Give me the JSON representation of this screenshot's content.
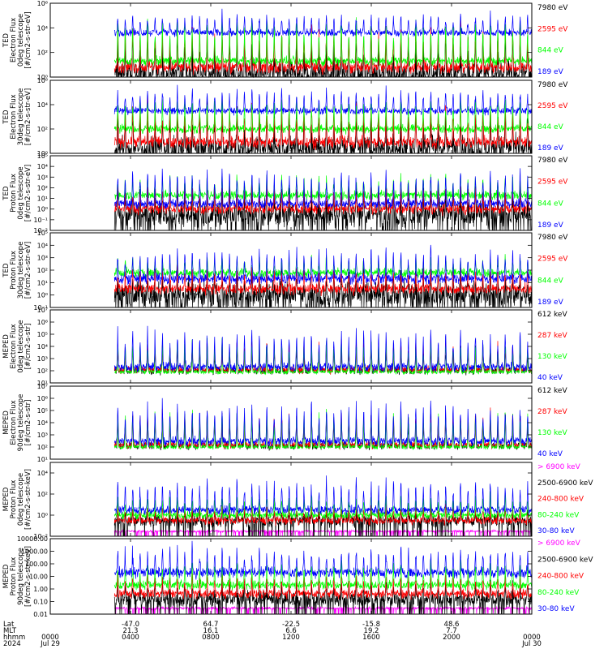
{
  "chart_data": [
    {
      "type": "line",
      "ylabel": [
        "TED",
        "Electron Flux",
        "0deg telescope",
        "[#/cm2-s-str-eV]"
      ],
      "yscale": "log",
      "ylim": [
        1,
        1000000
      ],
      "yticks": [
        {
          "v": 1,
          "t": "10⁰"
        },
        {
          "v": 100,
          "t": "10²"
        },
        {
          "v": 10000,
          "t": "10⁴"
        },
        {
          "v": 1000000,
          "t": "10⁶"
        }
      ],
      "series": [
        {
          "name": "7980 eV",
          "color": "#000000",
          "base": 2,
          "peak": 10000,
          "noise": 0.8,
          "pulse": 0.75,
          "drop": true
        },
        {
          "name": "2595 eV",
          "color": "#ff0000",
          "base": 6,
          "peak": 40000,
          "noise": 0.4,
          "pulse": 0.8,
          "drop": false
        },
        {
          "name": "844 eV",
          "color": "#00ff00",
          "base": 20,
          "peak": 80000,
          "noise": 0.3,
          "pulse": 0.8,
          "drop": false
        },
        {
          "name": "189 eV",
          "color": "#0000ff",
          "base": 4000,
          "peak": 200000,
          "noise": 0.25,
          "pulse": 0.45,
          "drop": false
        }
      ]
    },
    {
      "type": "line",
      "ylabel": [
        "TED",
        "Electron Flux",
        "30deg telescope",
        "[#/cm2-s-str-eV]"
      ],
      "yscale": "log",
      "ylim": [
        1,
        1000000
      ],
      "yticks": [
        {
          "v": 1,
          "t": "10⁰"
        },
        {
          "v": 100,
          "t": "10²"
        },
        {
          "v": 10000,
          "t": "10⁴"
        },
        {
          "v": 1000000,
          "t": "10⁶"
        }
      ],
      "series": [
        {
          "name": "7980 eV",
          "color": "#000000",
          "base": 3,
          "peak": 5000,
          "noise": 0.8,
          "pulse": 0.7,
          "drop": true
        },
        {
          "name": "2595 eV",
          "color": "#ff0000",
          "base": 8,
          "peak": 30000,
          "noise": 0.4,
          "pulse": 0.8,
          "drop": false
        },
        {
          "name": "844 eV",
          "color": "#00ff00",
          "base": 100,
          "peak": 60000,
          "noise": 0.3,
          "pulse": 0.75,
          "drop": false
        },
        {
          "name": "189 eV",
          "color": "#0000ff",
          "base": 3000,
          "peak": 300000,
          "noise": 0.25,
          "pulse": 0.5,
          "drop": false
        }
      ]
    },
    {
      "type": "line",
      "ylabel": [
        "TED",
        "Proton Flux",
        "0deg telescope",
        "[#/cm2-s-str-eV]"
      ],
      "yscale": "log",
      "ylim": [
        0.01,
        100000
      ],
      "yticks": [
        {
          "v": 0.01,
          "t": "10⁻²"
        },
        {
          "v": 0.1,
          "t": "10⁻¹"
        },
        {
          "v": 1,
          "t": "10⁰"
        },
        {
          "v": 10,
          "t": "10¹"
        },
        {
          "v": 100,
          "t": "10²"
        },
        {
          "v": 1000,
          "t": "10³"
        },
        {
          "v": 10000,
          "t": "10⁴"
        },
        {
          "v": 100000,
          "t": "10⁵"
        }
      ],
      "series": [
        {
          "name": "7980 eV",
          "color": "#000000",
          "base": 0.3,
          "peak": 100,
          "noise": 1.0,
          "pulse": 0.7,
          "drop": true
        },
        {
          "name": "2595 eV",
          "color": "#ff0000",
          "base": 1,
          "peak": 300,
          "noise": 0.4,
          "pulse": 0.7,
          "drop": false
        },
        {
          "name": "844 eV",
          "color": "#00ff00",
          "base": 20,
          "peak": 2000,
          "noise": 0.35,
          "pulse": 0.55,
          "drop": false
        },
        {
          "name": "189 eV",
          "color": "#0000ff",
          "base": 3,
          "peak": 10000,
          "noise": 0.35,
          "pulse": 0.7,
          "drop": false
        }
      ]
    },
    {
      "type": "line",
      "ylabel": [
        "TED",
        "Proton Flux",
        "30deg telescope",
        "[#/cm2-s-str-eV]"
      ],
      "yscale": "log",
      "ylim": [
        0.1,
        100000
      ],
      "yticks": [
        {
          "v": 0.1,
          "t": "10⁻¹"
        },
        {
          "v": 1,
          "t": "10⁰"
        },
        {
          "v": 10,
          "t": "10¹"
        },
        {
          "v": 100,
          "t": "10²"
        },
        {
          "v": 1000,
          "t": "10³"
        },
        {
          "v": 10000,
          "t": "10⁴"
        },
        {
          "v": 100000,
          "t": "10⁵"
        }
      ],
      "series": [
        {
          "name": "7980 eV",
          "color": "#000000",
          "base": 1,
          "peak": 50,
          "noise": 0.9,
          "pulse": 0.7,
          "drop": true
        },
        {
          "name": "2595 eV",
          "color": "#ff0000",
          "base": 3,
          "peak": 200,
          "noise": 0.35,
          "pulse": 0.7,
          "drop": false
        },
        {
          "name": "844 eV",
          "color": "#00ff00",
          "base": 60,
          "peak": 1500,
          "noise": 0.3,
          "pulse": 0.5,
          "drop": false
        },
        {
          "name": "189 eV",
          "color": "#0000ff",
          "base": 20,
          "peak": 10000,
          "noise": 0.35,
          "pulse": 0.7,
          "drop": false
        }
      ]
    },
    {
      "type": "line",
      "ylabel": [
        "MEPED",
        "Electron Flux",
        "0deg telescope",
        "[#/cm2-s-str]"
      ],
      "yscale": "log",
      "ylim": [
        10,
        10000000
      ],
      "yticks": [
        {
          "v": 10,
          "t": "10¹"
        },
        {
          "v": 100,
          "t": "10²"
        },
        {
          "v": 1000,
          "t": "10³"
        },
        {
          "v": 10000,
          "t": "10⁴"
        },
        {
          "v": 100000,
          "t": "10⁵"
        },
        {
          "v": 1000000,
          "t": "10⁶"
        },
        {
          "v": 10000000,
          "t": "10⁷"
        }
      ],
      "series": [
        {
          "name": "612 keV",
          "color": "#000000",
          "base": 100,
          "peak": 20000,
          "noise": 0.25,
          "pulse": 0.6,
          "drop": false
        },
        {
          "name": "287 keV",
          "color": "#ff0000",
          "base": 120,
          "peak": 40000,
          "noise": 0.25,
          "pulse": 0.6,
          "drop": false
        },
        {
          "name": "130 keV",
          "color": "#00ff00",
          "base": 80,
          "peak": 60000,
          "noise": 0.15,
          "pulse": 0.6,
          "drop": false
        },
        {
          "name": "40 keV",
          "color": "#0000ff",
          "base": 200,
          "peak": 500000,
          "noise": 0.3,
          "pulse": 0.6,
          "drop": false
        }
      ]
    },
    {
      "type": "line",
      "ylabel": [
        "MEPED",
        "Electron Flux",
        "90deg telescope",
        "[#/cm2-s-str]"
      ],
      "yscale": "log",
      "ylim": [
        10,
        10000000
      ],
      "yticks": [
        {
          "v": 10,
          "t": "10¹"
        },
        {
          "v": 100,
          "t": "10²"
        },
        {
          "v": 1000,
          "t": "10³"
        },
        {
          "v": 10000,
          "t": "10⁴"
        },
        {
          "v": 100000,
          "t": "10⁵"
        },
        {
          "v": 1000000,
          "t": "10⁶"
        },
        {
          "v": 10000000,
          "t": "10⁷"
        }
      ],
      "series": [
        {
          "name": "612 keV",
          "color": "#000000",
          "base": 120,
          "peak": 100000,
          "noise": 0.25,
          "pulse": 0.75,
          "drop": false
        },
        {
          "name": "287 keV",
          "color": "#ff0000",
          "base": 150,
          "peak": 200000,
          "noise": 0.25,
          "pulse": 0.75,
          "drop": false
        },
        {
          "name": "130 keV",
          "color": "#00ff00",
          "base": 100,
          "peak": 300000,
          "noise": 0.15,
          "pulse": 0.75,
          "drop": false
        },
        {
          "name": "40 keV",
          "color": "#0000ff",
          "base": 300,
          "peak": 1000000,
          "noise": 0.3,
          "pulse": 0.75,
          "drop": false
        }
      ]
    },
    {
      "type": "line",
      "ylabel": [
        "MEPED",
        "Proton Flux",
        "0deg telescope",
        "[#/cm2-s-str-keV]"
      ],
      "yscale": "log",
      "ylim": [
        0.01,
        100000
      ],
      "yticks": [
        {
          "v": 0.01,
          "t": "10⁻²"
        },
        {
          "v": 1,
          "t": "10⁰"
        },
        {
          "v": 100,
          "t": "10²"
        },
        {
          "v": 10000,
          "t": "10⁴"
        }
      ],
      "series": [
        {
          "name": "> 6900 keV",
          "color": "#ff00ff",
          "base": 0.03,
          "peak": 0.06,
          "noise": 0.3,
          "pulse": 0.0,
          "drop": true
        },
        {
          "name": "2500-6900 keV",
          "color": "#000000",
          "base": 0.3,
          "peak": 3,
          "noise": 0.5,
          "pulse": 0.5,
          "drop": true
        },
        {
          "name": "240-800 keV",
          "color": "#ff0000",
          "base": 0.3,
          "peak": 10,
          "noise": 0.3,
          "pulse": 0.5,
          "drop": false
        },
        {
          "name": "80-240 keV",
          "color": "#00ff00",
          "base": 1,
          "peak": 100,
          "noise": 0.3,
          "pulse": 0.5,
          "drop": false
        },
        {
          "name": "30-80 keV",
          "color": "#0000ff",
          "base": 3,
          "peak": 5000,
          "noise": 0.35,
          "pulse": 0.55,
          "drop": false
        }
      ]
    },
    {
      "type": "line",
      "ylabel": [
        "MEPED",
        "Proton Flux",
        "90deg telescope",
        "[#/cm2-s-str-keV]"
      ],
      "yscale": "log",
      "ylim": [
        0.01,
        10000
      ],
      "yticks": [
        {
          "v": 0.01,
          "t": "0.01"
        },
        {
          "v": 0.1,
          "t": "0.10"
        },
        {
          "v": 1,
          "t": "1.00"
        },
        {
          "v": 10,
          "t": "10.00"
        },
        {
          "v": 100,
          "t": "100.00"
        },
        {
          "v": 1000,
          "t": "1000.00"
        },
        {
          "v": 10000,
          "t": "10000.00"
        }
      ],
      "series": [
        {
          "name": "> 6900 keV",
          "color": "#ff00ff",
          "base": 0.03,
          "peak": 0.06,
          "noise": 0.3,
          "pulse": 0.0,
          "drop": true
        },
        {
          "name": "2500-6900 keV",
          "color": "#000000",
          "base": 0.15,
          "peak": 5,
          "noise": 0.5,
          "pulse": 0.5,
          "drop": true
        },
        {
          "name": "240-800 keV",
          "color": "#ff0000",
          "base": 0.4,
          "peak": 20,
          "noise": 0.3,
          "pulse": 0.5,
          "drop": false
        },
        {
          "name": "80-240 keV",
          "color": "#00ff00",
          "base": 2,
          "peak": 200,
          "noise": 0.3,
          "pulse": 0.5,
          "drop": false
        },
        {
          "name": "30-80 keV",
          "color": "#0000ff",
          "base": 20,
          "peak": 3000,
          "noise": 0.35,
          "pulse": 0.55,
          "drop": false
        }
      ]
    }
  ],
  "x_axis": {
    "data_start_hour": 3.2,
    "orbits": 28,
    "tick_hours": [
      0,
      4,
      8,
      12,
      16,
      20,
      24
    ],
    "row_labels": [
      "Lat",
      "MLT",
      "hhmm",
      "2024"
    ],
    "lat": [
      "",
      "-47.0",
      "64.7",
      "-22.5",
      "-15.8",
      "48.6",
      ""
    ],
    "mlt": [
      "",
      "21.3",
      "16.1",
      "6.6",
      "19.2",
      "7.7",
      ""
    ],
    "hhmm": [
      "0000",
      "0400",
      "0800",
      "1200",
      "1600",
      "2000",
      "0000"
    ],
    "date": [
      "Jul 29",
      "",
      "",
      "",
      "",
      "",
      "Jul 30"
    ]
  }
}
